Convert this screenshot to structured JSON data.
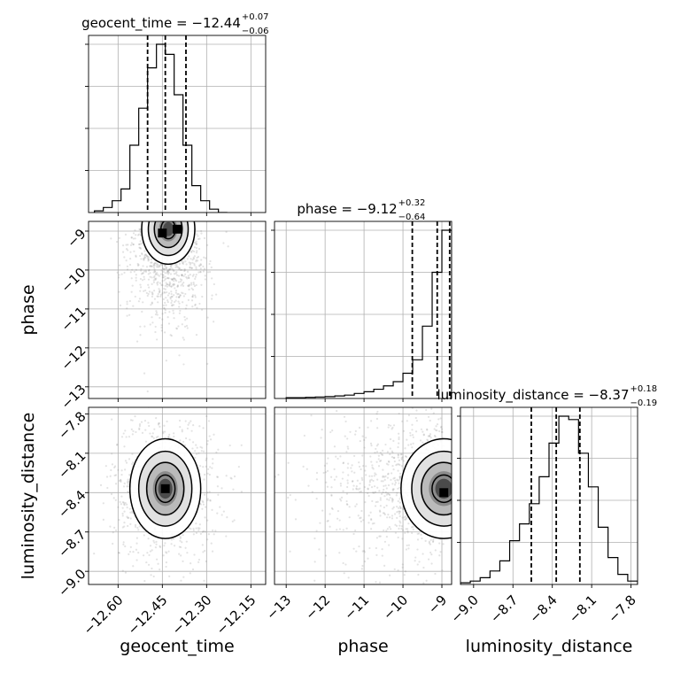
{
  "chart_data": {
    "type": "corner",
    "parameters": [
      "geocent_time",
      "phase",
      "luminosity_distance"
    ],
    "marginals": [
      {
        "parameter": "geocent_time",
        "title_prefix": "geocent_time = ",
        "median": "−12.44",
        "plus": "+0.07",
        "minus": "−0.06",
        "quantiles": [
          -12.5,
          -12.44,
          -12.37
        ],
        "bin_edges": [
          -12.68,
          -12.65,
          -12.62,
          -12.59,
          -12.56,
          -12.53,
          -12.5,
          -12.47,
          -12.44,
          -12.41,
          -12.38,
          -12.35,
          -12.32,
          -12.29,
          -12.26,
          -12.23
        ],
        "counts": [
          1,
          3,
          7,
          14,
          40,
          62,
          86,
          100,
          94,
          70,
          40,
          16,
          7,
          2,
          0
        ]
      },
      {
        "parameter": "phase",
        "title_prefix": "phase = ",
        "median": "−9.12",
        "plus": "+0.32",
        "minus": "−0.64",
        "quantiles": [
          -9.76,
          -9.12,
          -8.8
        ],
        "bin_edges": [
          -13.0,
          -12.75,
          -12.5,
          -12.25,
          -12.0,
          -11.75,
          -11.5,
          -11.25,
          -11.0,
          -10.75,
          -10.5,
          -10.25,
          -10.0,
          -9.75,
          -9.5,
          -9.25,
          -9.0,
          -8.75
        ],
        "counts": [
          0.5,
          0.5,
          0.7,
          0.9,
          1.1,
          1.5,
          2,
          3,
          4,
          5.5,
          7.5,
          10,
          15,
          23,
          43,
          75,
          100
        ]
      },
      {
        "parameter": "luminosity_distance",
        "title_prefix": "luminosity_distance = ",
        "median": "−8.37",
        "plus": "+0.18",
        "minus": "−0.19",
        "quantiles": [
          -8.56,
          -8.37,
          -8.19
        ],
        "bin_edges": [
          -9.1,
          -9.025,
          -8.95,
          -8.875,
          -8.8,
          -8.725,
          -8.65,
          -8.575,
          -8.5,
          -8.425,
          -8.35,
          -8.275,
          -8.2,
          -8.125,
          -8.05,
          -7.975,
          -7.9,
          -7.825,
          -7.75
        ],
        "counts": [
          1,
          2,
          4,
          8,
          14,
          26,
          36,
          48,
          64,
          84,
          100,
          98,
          78,
          58,
          34,
          16,
          6,
          2
        ]
      }
    ],
    "joint": [
      {
        "x": "geocent_time",
        "y": "phase",
        "center": [
          -12.43,
          -8.95
        ],
        "spread": [
          0.045,
          0.45
        ],
        "peak_cells": [
          [
            -12.45,
            -9.05
          ],
          [
            -12.4,
            -8.95
          ]
        ]
      },
      {
        "x": "geocent_time",
        "y": "luminosity_distance",
        "center": [
          -12.44,
          -8.37
        ],
        "spread": [
          0.06,
          0.19
        ],
        "peak_cells": [
          [
            -12.44,
            -8.37
          ]
        ]
      },
      {
        "x": "phase",
        "y": "luminosity_distance",
        "center": [
          -8.95,
          -8.37
        ],
        "spread": [
          0.55,
          0.19
        ],
        "peak_cells": [
          [
            -8.95,
            -8.4
          ]
        ]
      }
    ],
    "axes": {
      "geocent_time": {
        "range": [
          -12.7,
          -12.1
        ],
        "ticks": [
          -12.6,
          -12.45,
          -12.3,
          -12.15
        ],
        "tick_labels": [
          "−12.60",
          "−12.45",
          "−12.30",
          "−12.15"
        ]
      },
      "phase": {
        "range": [
          -13.3,
          -8.75
        ],
        "ticks": [
          -13,
          -12,
          -11,
          -10,
          -9
        ],
        "tick_labels": [
          "−13",
          "−12",
          "−11",
          "−10",
          "−9"
        ]
      },
      "luminosity_distance": {
        "range": [
          -9.1,
          -7.75
        ],
        "ticks": [
          -9.0,
          -8.7,
          -8.4,
          -8.1,
          -7.8
        ],
        "tick_labels": [
          "−9.0",
          "−8.7",
          "−8.4",
          "−8.1",
          "−7.8"
        ]
      }
    },
    "xlabels": [
      "geocent_time",
      "phase",
      "luminosity_distance"
    ],
    "ylabels": [
      "",
      "phase",
      "luminosity_distance"
    ],
    "grid": true,
    "colors": {
      "line": "#000000",
      "grid": "#b0b0b0",
      "scatter": "#7f7f7f"
    }
  }
}
